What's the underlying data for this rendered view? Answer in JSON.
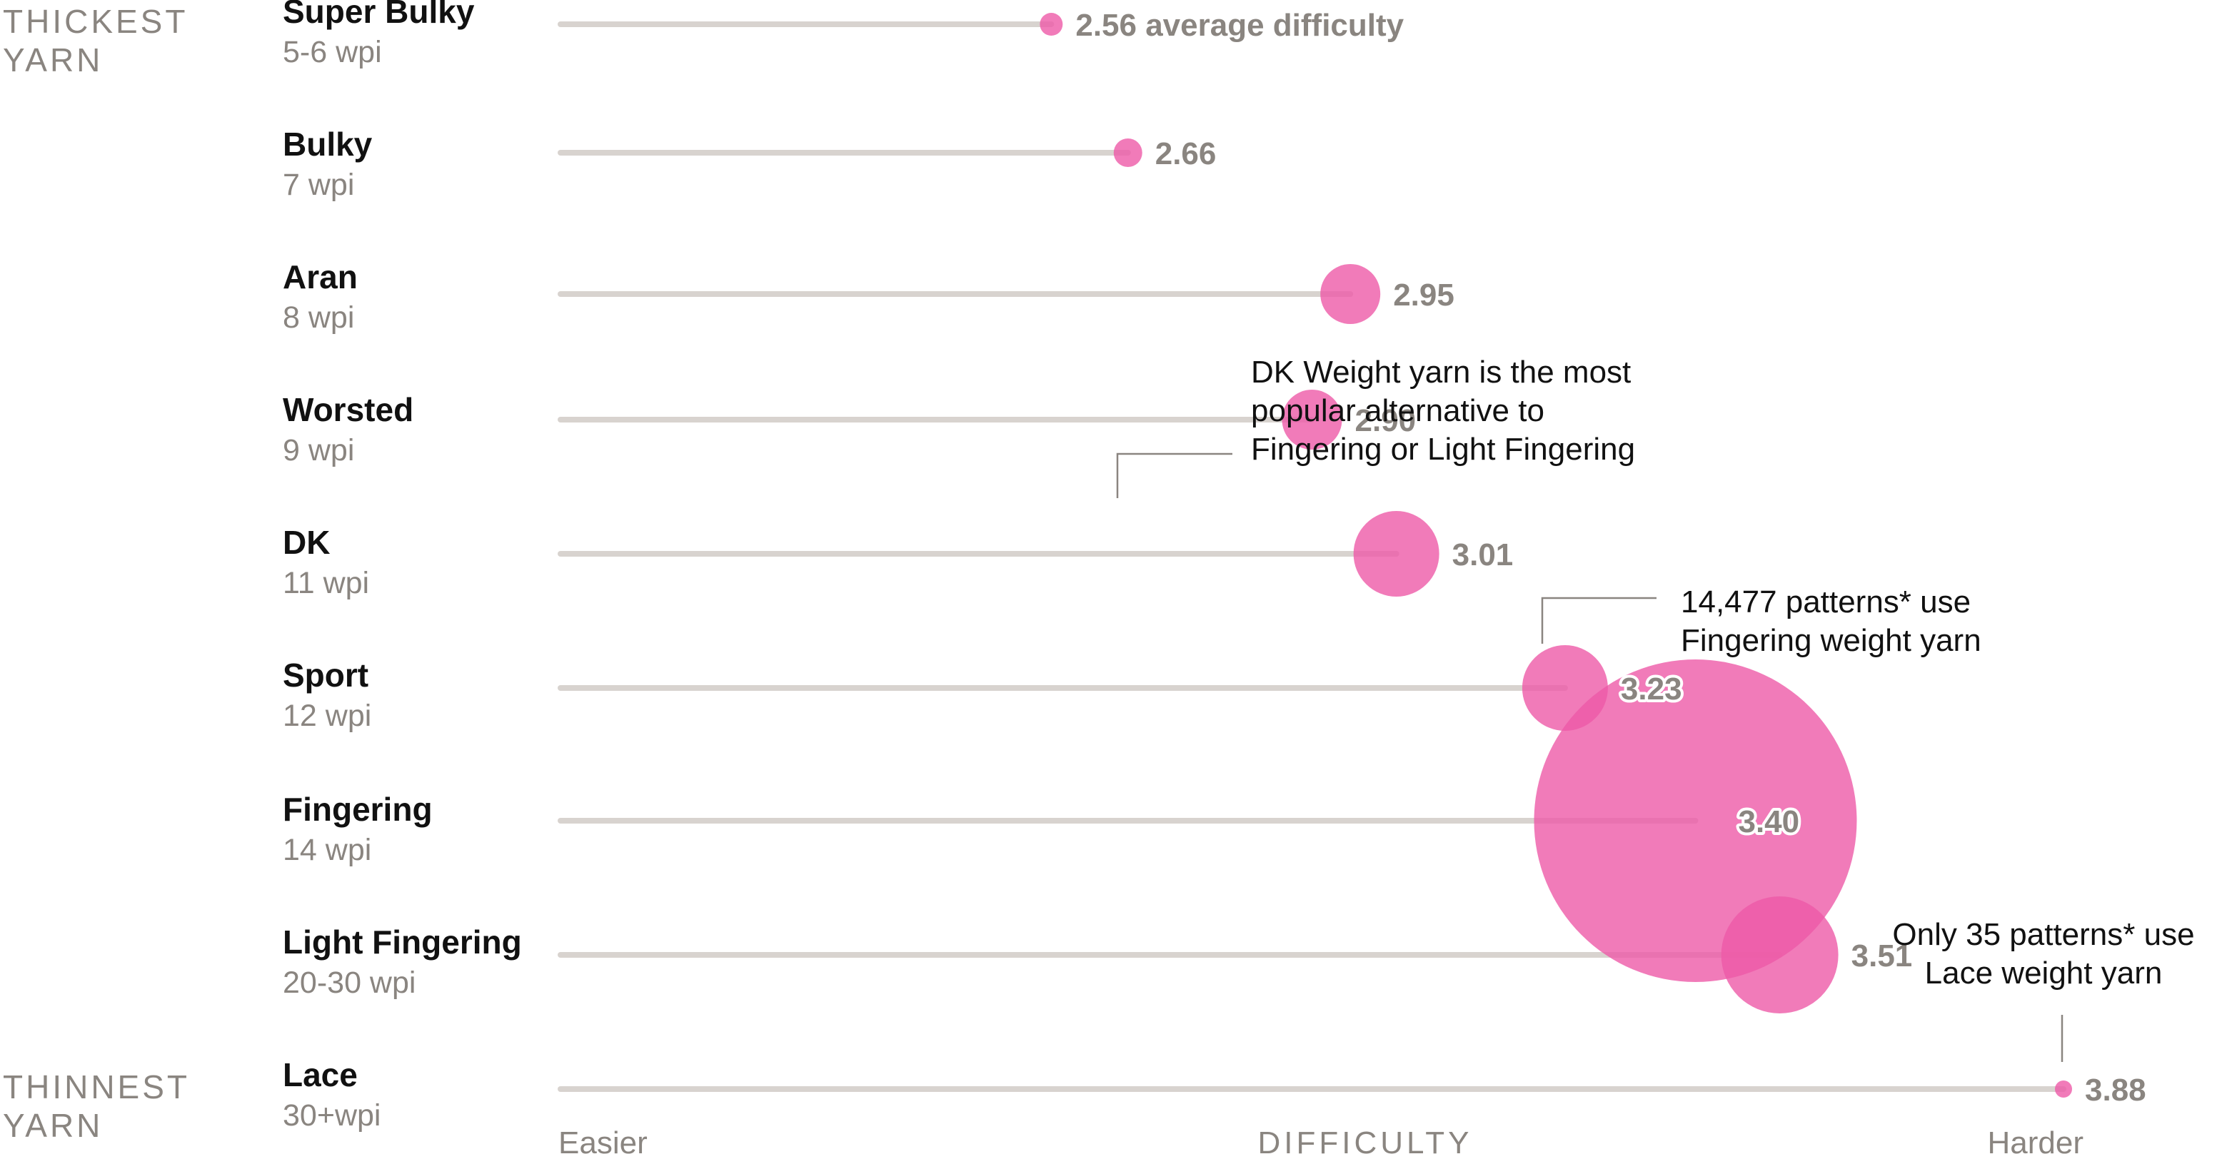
{
  "side_labels": {
    "top_line1": "THICKEST",
    "top_line2": "YARN",
    "bottom_line1": "THINNEST",
    "bottom_line2": "YARN"
  },
  "chart_data": {
    "type": "scatter",
    "xlabel": "DIFFICULTY",
    "xlabel_low": "Easier",
    "xlabel_high": "Harder",
    "x_axis_range": [
      1.92,
      3.88
    ],
    "colors": {
      "bubble": "#ee5aa8",
      "track": "#d8d3cf",
      "muted_text": "#8a8580",
      "label_text": "#111111"
    },
    "categories": [
      {
        "name": "Super Bulky",
        "wpi": "5-6 wpi",
        "difficulty": 2.56,
        "value_label": "2.56 average difficulty"
      },
      {
        "name": "Bulky",
        "wpi": "7 wpi",
        "difficulty": 2.66,
        "value_label": "2.66"
      },
      {
        "name": "Aran",
        "wpi": "8 wpi",
        "difficulty": 2.95,
        "value_label": "2.95"
      },
      {
        "name": "Worsted",
        "wpi": "9 wpi",
        "difficulty": 2.9,
        "value_label": "2.90"
      },
      {
        "name": "DK",
        "wpi": "11 wpi",
        "difficulty": 3.01,
        "value_label": "3.01"
      },
      {
        "name": "Sport",
        "wpi": "12 wpi",
        "difficulty": 3.23,
        "value_label": "3.23"
      },
      {
        "name": "Fingering",
        "wpi": "14 wpi",
        "difficulty": 3.4,
        "value_label": "3.40",
        "patterns": 14477
      },
      {
        "name": "Light Fingering",
        "wpi": "20-30 wpi",
        "difficulty": 3.51,
        "value_label": "3.51"
      },
      {
        "name": "Lace",
        "wpi": "30+wpi",
        "difficulty": 3.88,
        "value_label": "3.88",
        "patterns": 35
      }
    ],
    "bubble_size_metric": "number of patterns",
    "annotations": [
      {
        "target": "DK",
        "lines": [
          "DK Weight yarn is the most",
          "popular alternative to",
          "Fingering or Light Fingering"
        ]
      },
      {
        "target": "Fingering",
        "lines": [
          "14,477 patterns* use",
          "Fingering weight yarn"
        ]
      },
      {
        "target": "Lace",
        "lines": [
          "Only 35 patterns* use",
          "Lace weight yarn"
        ]
      }
    ]
  }
}
